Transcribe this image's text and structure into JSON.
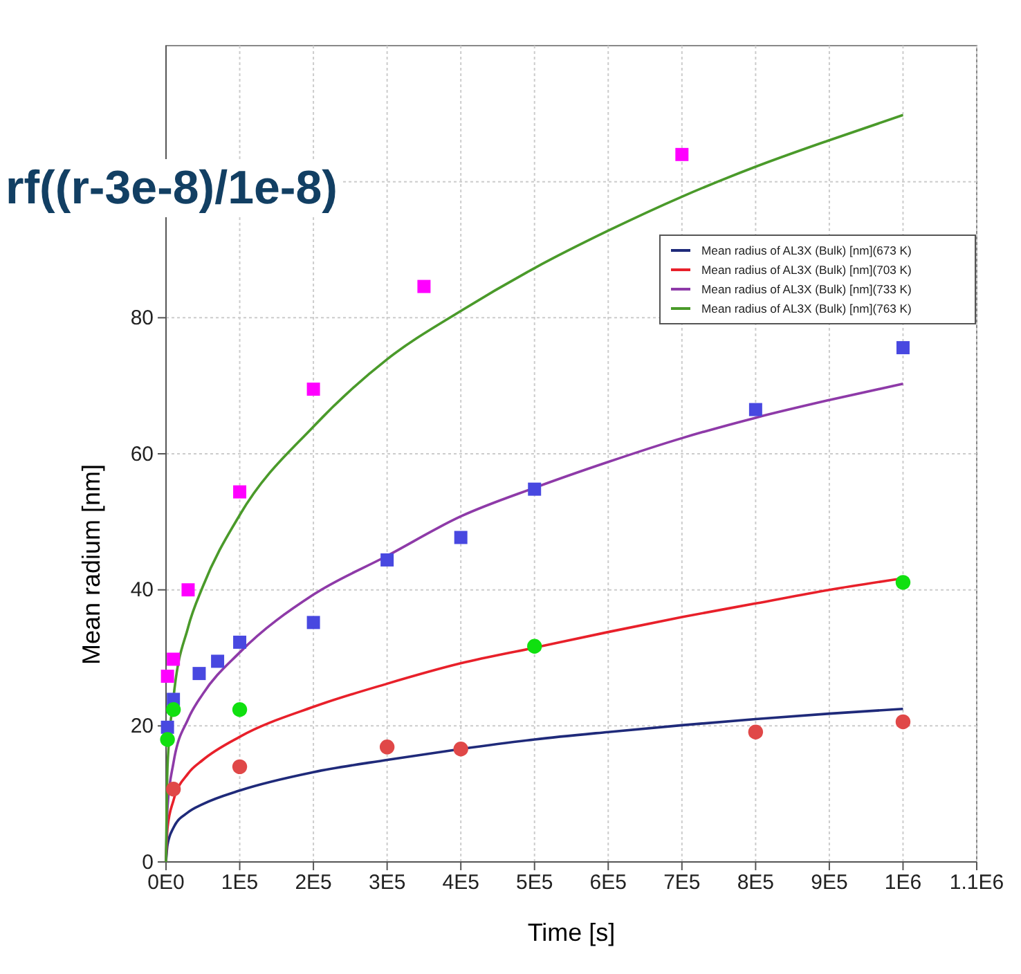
{
  "chart_data": {
    "type": "line",
    "title": "rf((r-3e-8)/1e-8)",
    "xlabel": "Time [s]",
    "ylabel": "Mean radium [nm]",
    "xlim": [
      0,
      1100000
    ],
    "ylim": [
      0,
      120
    ],
    "xticks": [
      {
        "value": 0,
        "label": "0E0"
      },
      {
        "value": 100000,
        "label": "1E5"
      },
      {
        "value": 200000,
        "label": "2E5"
      },
      {
        "value": 300000,
        "label": "3E5"
      },
      {
        "value": 400000,
        "label": "4E5"
      },
      {
        "value": 500000,
        "label": "5E5"
      },
      {
        "value": 600000,
        "label": "6E5"
      },
      {
        "value": 700000,
        "label": "7E5"
      },
      {
        "value": 800000,
        "label": "8E5"
      },
      {
        "value": 900000,
        "label": "9E5"
      },
      {
        "value": 1000000,
        "label": "1E6"
      },
      {
        "value": 1100000,
        "label": "1.1E6"
      }
    ],
    "yticks": [
      0,
      20,
      40,
      60,
      80,
      {
        "value": 100,
        "label": null
      }
    ],
    "grid": true,
    "legend": "top right",
    "line_style": "solid",
    "series": [
      {
        "type": "line",
        "name": "Mean radius of AL3X (Bulk) [nm](673 K)",
        "color": "#1f2a7a",
        "x": [
          0,
          2000,
          10000,
          30000,
          50000,
          100000,
          200000,
          300000,
          400000,
          500000,
          600000,
          700000,
          800000,
          900000,
          1000000
        ],
        "values": [
          0,
          2.5,
          5,
          7.3,
          8.5,
          10.5,
          13.2,
          15,
          16.6,
          18,
          19.1,
          20.1,
          21,
          21.8,
          22.5
        ]
      },
      {
        "type": "line",
        "name": "Mean radius of AL3X (Bulk) [nm](703 K)",
        "color": "#e8202a",
        "x": [
          0,
          2000,
          10000,
          30000,
          50000,
          100000,
          200000,
          300000,
          400000,
          500000,
          600000,
          700000,
          800000,
          900000,
          1000000
        ],
        "values": [
          0,
          5,
          9,
          13,
          15,
          18.4,
          22.8,
          26.2,
          29.2,
          31.5,
          33.8,
          36,
          38,
          40,
          41.7
        ]
      },
      {
        "type": "line",
        "name": "Mean radius of AL3X (Bulk) [nm](733 K)",
        "color": "#8e3aa8",
        "x": [
          0,
          2000,
          10000,
          30000,
          50000,
          100000,
          200000,
          300000,
          400000,
          500000,
          600000,
          700000,
          800000,
          900000,
          1000000
        ],
        "values": [
          0,
          8,
          14.5,
          21,
          24.7,
          30.8,
          39.3,
          45,
          50.8,
          55,
          58.8,
          62.3,
          65.3,
          67.9,
          70.3
        ]
      },
      {
        "type": "line",
        "name": "Mean radius of AL3X (Bulk) [nm](763 K)",
        "color": "#4a9a2a",
        "x": [
          0,
          2000,
          10000,
          30000,
          50000,
          100000,
          200000,
          300000,
          400000,
          500000,
          600000,
          700000,
          800000,
          900000,
          1000000
        ],
        "values": [
          0,
          14,
          24,
          34.5,
          40.5,
          51,
          64,
          73.9,
          81,
          87.3,
          92.8,
          97.8,
          102.2,
          106.1,
          109.8
        ]
      },
      {
        "type": "scatter",
        "marker": "square",
        "color": "#ff00ff",
        "x": [
          2000,
          10000,
          30000,
          100000,
          200000,
          350000,
          700000
        ],
        "values": [
          27.3,
          29.8,
          40,
          54.4,
          69.5,
          84.6,
          104
        ]
      },
      {
        "type": "scatter",
        "marker": "square",
        "color": "#4848e0",
        "x": [
          2000,
          10000,
          45000,
          70000,
          100000,
          200000,
          300000,
          400000,
          500000,
          800000,
          1000000
        ],
        "values": [
          19.8,
          23.9,
          27.7,
          29.5,
          32.3,
          35.2,
          44.4,
          47.7,
          54.8,
          66.5,
          75.6
        ]
      },
      {
        "type": "scatter",
        "marker": "circle",
        "color": "#10e010",
        "x": [
          2000,
          10000,
          100000,
          500000,
          1000000
        ],
        "values": [
          18,
          22.4,
          22.4,
          31.7,
          41.1
        ]
      },
      {
        "type": "scatter",
        "marker": "circle",
        "color": "#e04848",
        "x": [
          10000,
          100000,
          300000,
          400000,
          800000,
          1000000
        ],
        "values": [
          10.7,
          14,
          16.9,
          16.6,
          19.1,
          20.6
        ]
      }
    ]
  }
}
